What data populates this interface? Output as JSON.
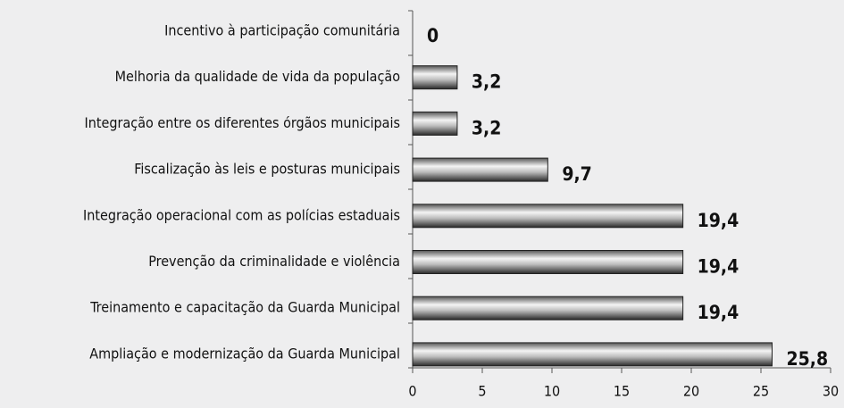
{
  "chart_data": {
    "type": "bar",
    "orientation": "horizontal",
    "categories": [
      "Incentivo à participação comunitária",
      "Melhoria da qualidade de vida da população",
      "Integração entre os diferentes órgãos municipais",
      "Fiscalização às leis e posturas municipais",
      "Integração operacional com as polícias estaduais",
      "Prevenção da criminalidade e violência",
      "Treinamento e capacitação da Guarda Municipal",
      "Ampliação e modernização da Guarda Municipal"
    ],
    "values": [
      0,
      3.2,
      3.2,
      9.7,
      19.4,
      19.4,
      19.4,
      25.8
    ],
    "value_labels": [
      "0",
      "3,2",
      "3,2",
      "9,7",
      "19,4",
      "19,4",
      "19,4",
      "25,8"
    ],
    "color": "#8a8a8a",
    "xlim": [
      0,
      30
    ],
    "xticks": [
      0,
      5,
      10,
      15,
      20,
      25,
      30
    ]
  }
}
